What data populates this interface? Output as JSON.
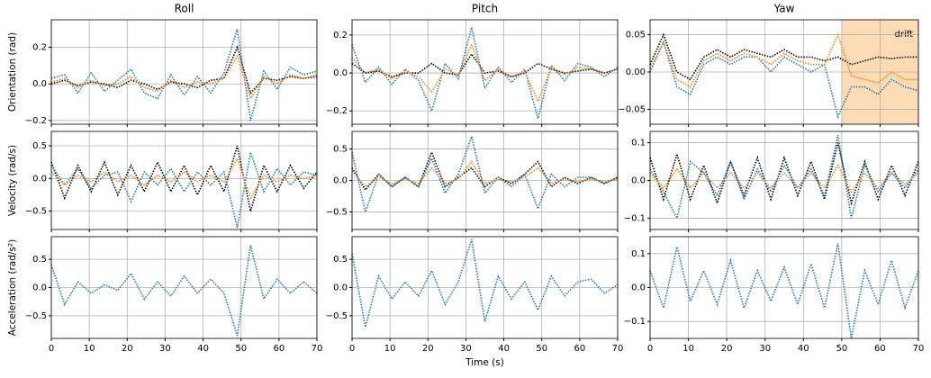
{
  "chart_data": [
    {
      "type": "line",
      "title": "Roll",
      "ylabel": "Orientation (rad)",
      "linestyle": "dotted",
      "grid": true,
      "x": [
        0,
        3.5,
        7,
        10.5,
        14,
        17.5,
        21,
        24.5,
        28,
        31.5,
        35,
        38.5,
        42,
        45.5,
        49,
        52.5,
        56,
        59.5,
        63,
        66.5,
        70
      ],
      "xlim": [
        0,
        70
      ],
      "xticks": [
        0,
        10,
        20,
        30,
        40,
        50,
        60,
        70
      ],
      "ylim": [
        -0.22,
        0.35
      ],
      "yticks": [
        {
          "value": -0.2,
          "label": "−0.2"
        },
        {
          "value": 0,
          "label": "0.0"
        },
        0.2
      ],
      "series": [
        {
          "color": "#000000",
          "values": [
            0,
            0.02,
            -0.01,
            0.01,
            0,
            -0.02,
            0.02,
            0,
            -0.03,
            0.01,
            0,
            -0.02,
            0.02,
            0.03,
            0.2,
            -0.05,
            0.03,
            0.02,
            0.04,
            0.03,
            0.04
          ]
        },
        {
          "color": "#1f77b4",
          "values": [
            0.03,
            0.05,
            -0.05,
            0.06,
            -0.04,
            0.02,
            0.08,
            -0.05,
            -0.08,
            0.05,
            -0.06,
            0.04,
            -0.05,
            0.06,
            0.3,
            -0.2,
            0.07,
            -0.03,
            0.09,
            0.05,
            0.07
          ]
        },
        {
          "color": "#ff7f0e",
          "values": [
            0.01,
            0.03,
            -0.02,
            0.02,
            -0.01,
            0,
            0.04,
            -0.02,
            -0.04,
            0.02,
            -0.02,
            0.01,
            0,
            0.03,
            0.15,
            -0.08,
            0.04,
            0,
            0.05,
            0.03,
            0.05
          ]
        }
      ]
    },
    {
      "type": "line",
      "title": "Pitch",
      "linestyle": "dotted",
      "grid": true,
      "x": [
        0,
        3.5,
        7,
        10.5,
        14,
        17.5,
        21,
        24.5,
        28,
        31.5,
        35,
        38.5,
        42,
        45.5,
        49,
        52.5,
        56,
        59.5,
        63,
        66.5,
        70
      ],
      "xlim": [
        0,
        70
      ],
      "xticks": [
        0,
        10,
        20,
        30,
        40,
        50,
        60,
        70
      ],
      "ylim": [
        -0.27,
        0.28
      ],
      "yticks": [
        {
          "value": -0.2,
          "label": "−0.2"
        },
        {
          "value": 0,
          "label": "0.0"
        },
        0.2
      ],
      "series": [
        {
          "color": "#000000",
          "values": [
            0.05,
            0,
            0.01,
            -0.02,
            0,
            0,
            0.05,
            0,
            -0.01,
            0.1,
            0,
            0.01,
            -0.02,
            0,
            0.05,
            0.02,
            0,
            0.01,
            0.02,
            0,
            0.02
          ]
        },
        {
          "color": "#1f77b4",
          "values": [
            0.15,
            -0.05,
            0.03,
            -0.06,
            0.02,
            -0.04,
            -0.2,
            0.05,
            -0.03,
            0.24,
            -0.08,
            0.03,
            -0.05,
            0.02,
            -0.24,
            0.04,
            -0.04,
            0.05,
            0.03,
            -0.02,
            0.03
          ]
        },
        {
          "color": "#ff7f0e",
          "values": [
            0.08,
            0,
            0.02,
            -0.03,
            0.01,
            -0.02,
            -0.1,
            0.02,
            -0.01,
            0.15,
            -0.04,
            0.02,
            -0.02,
            0.01,
            -0.15,
            0.03,
            -0.01,
            0.03,
            0.02,
            0,
            0.02
          ]
        }
      ]
    },
    {
      "type": "line",
      "title": "Yaw",
      "linestyle": "dotted",
      "grid": true,
      "x": [
        0,
        3.5,
        7,
        10.5,
        14,
        17.5,
        21,
        24.5,
        28,
        31.5,
        35,
        38.5,
        42,
        45.5,
        49,
        52.5,
        56,
        59.5,
        63,
        66.5,
        70
      ],
      "xlim": [
        0,
        70
      ],
      "xticks": [
        0,
        10,
        20,
        30,
        40,
        50,
        60,
        70
      ],
      "ylim": [
        -0.07,
        0.07
      ],
      "yticks": [
        {
          "value": -0.05,
          "label": "−0.05"
        },
        {
          "value": 0,
          "label": "0.00"
        },
        0.05
      ],
      "shaded_span": {
        "xlim": [
          50,
          70
        ],
        "label": "drift",
        "color": "#fddcb5"
      },
      "series": [
        {
          "color": "#000000",
          "values": [
            0.01,
            0.05,
            0,
            -0.01,
            0.02,
            0.03,
            0.02,
            0.03,
            0.025,
            0.02,
            0.03,
            0.02,
            0.02,
            0.015,
            0.02,
            0.01,
            0.015,
            0.02,
            0.018,
            0.02,
            0.02
          ]
        },
        {
          "color": "#1f77b4",
          "values": [
            0,
            0.04,
            -0.02,
            -0.03,
            0.01,
            0.02,
            0.01,
            0.02,
            0.02,
            0,
            0.02,
            0.01,
            0,
            0.01,
            -0.06,
            -0.02,
            -0.02,
            -0.03,
            -0.01,
            -0.02,
            -0.025
          ]
        },
        {
          "color": "#ff7f0e",
          "values": [
            0.005,
            0.04,
            -0.01,
            -0.02,
            0.015,
            0.025,
            0.015,
            0.025,
            0.02,
            0.01,
            0.025,
            0.015,
            0.01,
            0.01,
            0.05,
            -0.005,
            -0.01,
            -0.015,
            0,
            -0.01,
            -0.01
          ]
        }
      ]
    },
    {
      "type": "line",
      "ylabel": "Velocity (rad/s)",
      "linestyle": "dotted",
      "grid": true,
      "x": [
        0,
        3.5,
        7,
        10.5,
        14,
        17.5,
        21,
        24.5,
        28,
        31.5,
        35,
        38.5,
        42,
        45.5,
        49,
        52.5,
        56,
        59.5,
        63,
        66.5,
        70
      ],
      "xlim": [
        0,
        70
      ],
      "xticks": [
        0,
        10,
        20,
        30,
        40,
        50,
        60,
        70
      ],
      "ylim": [
        -0.78,
        0.72
      ],
      "yticks": [
        {
          "value": -0.5,
          "label": "−0.5"
        },
        {
          "value": 0,
          "label": "0.0"
        },
        0.5
      ],
      "series": [
        {
          "color": "#000000",
          "values": [
            0.25,
            -0.3,
            0.2,
            -0.2,
            0.25,
            -0.25,
            0.2,
            -0.2,
            0.25,
            -0.2,
            0.2,
            -0.25,
            0.2,
            -0.2,
            0.5,
            -0.5,
            0.2,
            -0.2,
            0.2,
            -0.15,
            0.1
          ]
        },
        {
          "color": "#1f77b4",
          "values": [
            0.2,
            -0.1,
            0.15,
            -0.15,
            0.05,
            0.1,
            -0.35,
            0.1,
            -0.1,
            0.15,
            -0.2,
            0.1,
            -0.1,
            0.1,
            -0.75,
            0.4,
            -0.2,
            0.15,
            -0.1,
            0.1,
            0.05
          ]
        },
        {
          "color": "#ff7f0e",
          "values": [
            0.1,
            -0.1,
            0.05,
            -0.05,
            0.1,
            -0.05,
            0.05,
            -0.1,
            0.05,
            -0.05,
            0.1,
            -0.05,
            0.05,
            -0.05,
            0.3,
            -0.3,
            0.05,
            -0.05,
            0.05,
            0,
            0.05
          ]
        }
      ]
    },
    {
      "type": "line",
      "linestyle": "dotted",
      "grid": true,
      "x": [
        0,
        3.5,
        7,
        10.5,
        14,
        17.5,
        21,
        24.5,
        28,
        31.5,
        35,
        38.5,
        42,
        45.5,
        49,
        52.5,
        56,
        59.5,
        63,
        66.5,
        70
      ],
      "xlim": [
        0,
        70
      ],
      "xticks": [
        0,
        10,
        20,
        30,
        40,
        50,
        60,
        70
      ],
      "ylim": [
        -0.78,
        0.78
      ],
      "yticks": [
        {
          "value": -0.5,
          "label": "−0.5"
        },
        {
          "value": 0,
          "label": "0.0"
        },
        0.5
      ],
      "series": [
        {
          "color": "#000000",
          "values": [
            0.2,
            -0.15,
            0.1,
            -0.1,
            0.05,
            -0.1,
            0.45,
            -0.1,
            0.05,
            0.2,
            -0.1,
            0.05,
            -0.05,
            0.1,
            0.3,
            -0.1,
            0.05,
            -0.05,
            0.05,
            -0.05,
            0.05
          ]
        },
        {
          "color": "#1f77b4",
          "values": [
            0.45,
            -0.5,
            0.1,
            -0.1,
            0.05,
            -0.1,
            0.35,
            -0.2,
            0.1,
            0.7,
            -0.2,
            0.05,
            -0.1,
            0.1,
            -0.45,
            0.1,
            -0.1,
            0.05,
            0.05,
            -0.05,
            0.05
          ]
        },
        {
          "color": "#ff7f0e",
          "values": [
            0.15,
            -0.1,
            0.05,
            -0.05,
            0.02,
            -0.05,
            0.2,
            -0.05,
            0.02,
            0.3,
            -0.05,
            0.02,
            -0.02,
            0.05,
            0.2,
            -0.05,
            0.02,
            -0.02,
            0.02,
            -0.02,
            0.02
          ]
        }
      ]
    },
    {
      "type": "line",
      "linestyle": "dotted",
      "grid": true,
      "x": [
        0,
        3.5,
        7,
        10.5,
        14,
        17.5,
        21,
        24.5,
        28,
        31.5,
        35,
        38.5,
        42,
        45.5,
        49,
        52.5,
        56,
        59.5,
        63,
        66.5,
        70
      ],
      "xlim": [
        0,
        70
      ],
      "xticks": [
        0,
        10,
        20,
        30,
        40,
        50,
        60,
        70
      ],
      "ylim": [
        -0.13,
        0.13
      ],
      "yticks": [
        {
          "value": -0.1,
          "label": "−0.1"
        },
        {
          "value": 0,
          "label": "0.0"
        },
        0.1
      ],
      "series": [
        {
          "color": "#000000",
          "values": [
            0.06,
            -0.05,
            0.07,
            -0.05,
            0.04,
            -0.06,
            0.05,
            -0.04,
            0.06,
            -0.05,
            0.06,
            -0.04,
            0.05,
            -0.05,
            0.1,
            -0.06,
            0.05,
            -0.05,
            0.04,
            -0.04,
            0.05
          ]
        },
        {
          "color": "#1f77b4",
          "values": [
            0.03,
            -0.03,
            -0.1,
            0.05,
            0.02,
            -0.04,
            0.05,
            -0.05,
            0.03,
            -0.03,
            0.04,
            -0.02,
            0.03,
            -0.04,
            0.12,
            -0.1,
            0.04,
            -0.03,
            0.02,
            -0.02,
            0.03
          ]
        },
        {
          "color": "#ff7f0e",
          "values": [
            0.02,
            -0.02,
            0.03,
            -0.02,
            0.02,
            -0.02,
            0.02,
            -0.02,
            0.02,
            -0.02,
            0.02,
            -0.02,
            0.02,
            -0.02,
            0.04,
            -0.03,
            0.02,
            -0.02,
            0.02,
            -0.01,
            0.02
          ]
        }
      ]
    },
    {
      "type": "line",
      "ylabel": "Acceleration (rad/s²)",
      "linestyle": "dotted",
      "grid": true,
      "x": [
        0,
        3.5,
        7,
        10.5,
        14,
        17.5,
        21,
        24.5,
        28,
        31.5,
        35,
        38.5,
        42,
        45.5,
        49,
        52.5,
        56,
        59.5,
        63,
        66.5,
        70
      ],
      "xlim": [
        0,
        70
      ],
      "xticks": [
        0,
        10,
        20,
        30,
        40,
        50,
        60,
        70
      ],
      "ylim": [
        -0.9,
        0.9
      ],
      "yticks": [
        {
          "value": -0.5,
          "label": "−0.5"
        },
        {
          "value": 0,
          "label": "0.0"
        },
        0.5
      ],
      "series": [
        {
          "color": "#1f77b4",
          "values": [
            0.4,
            -0.3,
            0.1,
            -0.1,
            0.05,
            -0.05,
            0.25,
            -0.2,
            0.1,
            -0.15,
            0.2,
            -0.1,
            0.15,
            -0.1,
            -0.85,
            0.75,
            -0.2,
            0.15,
            -0.1,
            0.1,
            -0.1
          ]
        }
      ]
    },
    {
      "type": "line",
      "xlabel": "Time (s)",
      "linestyle": "dotted",
      "grid": true,
      "x": [
        0,
        3.5,
        7,
        10.5,
        14,
        17.5,
        21,
        24.5,
        28,
        31.5,
        35,
        38.5,
        42,
        45.5,
        49,
        52.5,
        56,
        59.5,
        63,
        66.5,
        70
      ],
      "xlim": [
        0,
        70
      ],
      "xticks": [
        0,
        10,
        20,
        30,
        40,
        50,
        60,
        70
      ],
      "ylim": [
        -0.9,
        0.9
      ],
      "yticks": [
        {
          "value": -0.5,
          "label": "−0.5"
        },
        {
          "value": 0,
          "label": "0.0"
        },
        0.5
      ],
      "series": [
        {
          "color": "#1f77b4",
          "values": [
            0.6,
            -0.7,
            0.2,
            -0.2,
            0.1,
            -0.15,
            0.3,
            -0.3,
            0.1,
            0.85,
            -0.6,
            0.2,
            -0.2,
            0.1,
            -0.4,
            0.2,
            -0.15,
            0.1,
            0.15,
            -0.1,
            0.05
          ]
        }
      ]
    },
    {
      "type": "line",
      "linestyle": "dotted",
      "grid": true,
      "x": [
        0,
        3.5,
        7,
        10.5,
        14,
        17.5,
        21,
        24.5,
        28,
        31.5,
        35,
        38.5,
        42,
        45.5,
        49,
        52.5,
        56,
        59.5,
        63,
        66.5,
        70
      ],
      "xlim": [
        0,
        70
      ],
      "xticks": [
        0,
        10,
        20,
        30,
        40,
        50,
        60,
        70
      ],
      "ylim": [
        -0.15,
        0.15
      ],
      "yticks": [
        {
          "value": -0.1,
          "label": "−0.1"
        },
        {
          "value": 0,
          "label": "0.0"
        },
        0.1
      ],
      "series": [
        {
          "color": "#1f77b4",
          "values": [
            0.05,
            -0.06,
            0.12,
            -0.04,
            0.05,
            -0.05,
            0.08,
            -0.06,
            0.05,
            -0.04,
            0.06,
            -0.05,
            0.07,
            -0.06,
            0.13,
            -0.15,
            0.05,
            -0.05,
            0.08,
            -0.06,
            0.05
          ]
        }
      ]
    }
  ]
}
